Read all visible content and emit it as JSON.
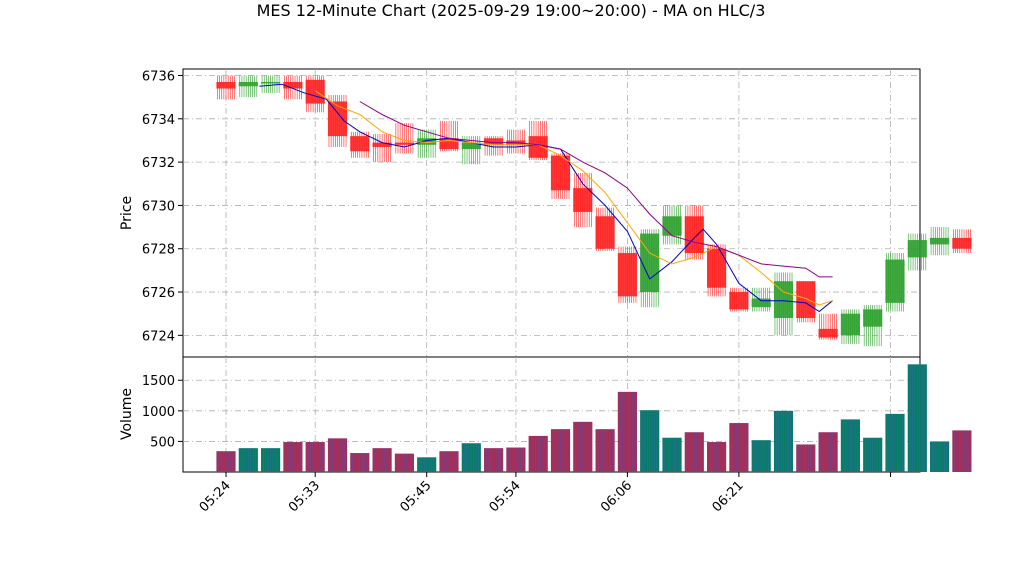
{
  "chart_data": {
    "type": "candlestick",
    "title": "MES 12-Minute Chart (2025-09-29 19:00~20:00) - MA on HLC/3",
    "price_panel": {
      "ylabel": "Price",
      "ylim": [
        6723.0,
        6736.3
      ],
      "yticks": [
        6724,
        6726,
        6728,
        6730,
        6732,
        6734,
        6736
      ],
      "grid": true
    },
    "volume_panel": {
      "ylabel": "Volume",
      "ylim": [
        0,
        1880
      ],
      "yticks": [
        500,
        1000,
        1500
      ],
      "grid": true
    },
    "x": {
      "tick_labels": [
        "05:24",
        "05:33",
        "05:45",
        "05:54",
        "06:06",
        "06:21"
      ],
      "tick_label_rotation": 45
    },
    "colors": {
      "up": "#2ca02c",
      "down": "#ff2020",
      "vol_up": "#0a7a6a",
      "vol_down": "#a0305a",
      "ma_blue": "#0000cc",
      "ma_orange": "#ffa500",
      "ma_purple": "#8b008b"
    },
    "candles": [
      {
        "o": 6735.7,
        "h": 6736.0,
        "l": 6734.9,
        "c": 6735.4,
        "v": 340
      },
      {
        "o": 6735.5,
        "h": 6736.0,
        "l": 6735.0,
        "c": 6735.7,
        "v": 390
      },
      {
        "o": 6735.7,
        "h": 6736.0,
        "l": 6735.2,
        "c": 6735.7,
        "v": 390
      },
      {
        "o": 6735.7,
        "h": 6736.0,
        "l": 6734.9,
        "c": 6735.4,
        "v": 490
      },
      {
        "o": 6735.8,
        "h": 6736.0,
        "l": 6734.3,
        "c": 6734.7,
        "v": 490
      },
      {
        "o": 6734.8,
        "h": 6735.1,
        "l": 6732.7,
        "c": 6733.2,
        "v": 550
      },
      {
        "o": 6733.2,
        "h": 6733.4,
        "l": 6732.2,
        "c": 6732.5,
        "v": 310
      },
      {
        "o": 6732.9,
        "h": 6733.3,
        "l": 6732.0,
        "c": 6732.7,
        "v": 390
      },
      {
        "o": 6732.9,
        "h": 6733.8,
        "l": 6732.4,
        "c": 6732.8,
        "v": 300
      },
      {
        "o": 6732.8,
        "h": 6733.5,
        "l": 6732.2,
        "c": 6733.1,
        "v": 240
      },
      {
        "o": 6733.1,
        "h": 6733.9,
        "l": 6732.5,
        "c": 6732.6,
        "v": 340
      },
      {
        "o": 6732.6,
        "h": 6733.2,
        "l": 6731.9,
        "c": 6732.9,
        "v": 470
      },
      {
        "o": 6733.1,
        "h": 6733.2,
        "l": 6732.3,
        "c": 6732.8,
        "v": 390
      },
      {
        "o": 6733.0,
        "h": 6733.5,
        "l": 6732.4,
        "c": 6732.8,
        "v": 400
      },
      {
        "o": 6733.2,
        "h": 6733.9,
        "l": 6732.1,
        "c": 6732.2,
        "v": 590
      },
      {
        "o": 6732.3,
        "h": 6732.4,
        "l": 6730.3,
        "c": 6730.7,
        "v": 700
      },
      {
        "o": 6730.8,
        "h": 6731.5,
        "l": 6729.0,
        "c": 6729.7,
        "v": 820
      },
      {
        "o": 6729.5,
        "h": 6729.9,
        "l": 6727.9,
        "c": 6728.0,
        "v": 700
      },
      {
        "o": 6727.8,
        "h": 6728.1,
        "l": 6725.5,
        "c": 6725.8,
        "v": 1310
      },
      {
        "o": 6726.0,
        "h": 6728.9,
        "l": 6725.3,
        "c": 6728.7,
        "v": 1010
      },
      {
        "o": 6728.6,
        "h": 6730.0,
        "l": 6728.2,
        "c": 6729.5,
        "v": 560
      },
      {
        "o": 6729.5,
        "h": 6730.0,
        "l": 6727.5,
        "c": 6727.8,
        "v": 650
      },
      {
        "o": 6728.0,
        "h": 6728.2,
        "l": 6725.8,
        "c": 6726.2,
        "v": 490
      },
      {
        "o": 6726.0,
        "h": 6726.2,
        "l": 6725.1,
        "c": 6725.2,
        "v": 800
      },
      {
        "o": 6725.3,
        "h": 6726.2,
        "l": 6725.1,
        "c": 6725.7,
        "v": 520
      },
      {
        "o": 6724.8,
        "h": 6726.9,
        "l": 6724.0,
        "c": 6726.5,
        "v": 1000
      },
      {
        "o": 6726.5,
        "h": 6726.5,
        "l": 6724.6,
        "c": 6724.8,
        "v": 450
      },
      {
        "o": 6724.3,
        "h": 6725.0,
        "l": 6723.8,
        "c": 6723.9,
        "v": 650
      },
      {
        "o": 6724.0,
        "h": 6725.2,
        "l": 6723.6,
        "c": 6725.0,
        "v": 860
      },
      {
        "o": 6724.4,
        "h": 6725.4,
        "l": 6723.5,
        "c": 6725.2,
        "v": 560
      },
      {
        "o": 6725.5,
        "h": 6727.8,
        "l": 6725.1,
        "c": 6727.5,
        "v": 950
      },
      {
        "o": 6727.6,
        "h": 6728.7,
        "l": 6727.0,
        "c": 6728.4,
        "v": 1760
      },
      {
        "o": 6728.2,
        "h": 6729.0,
        "l": 6727.7,
        "c": 6728.5,
        "v": 500
      },
      {
        "o": 6728.5,
        "h": 6728.9,
        "l": 6727.8,
        "c": 6728.0,
        "v": 680
      }
    ],
    "ma_series": [
      {
        "color": "blue",
        "values": [
          {
            "i": 1.5,
            "y": 6735.5
          },
          {
            "i": 2.5,
            "y": 6735.6
          },
          {
            "i": 3.5,
            "y": 6735.2
          },
          {
            "i": 4.5,
            "y": 6734.9
          },
          {
            "i": 5.3,
            "y": 6733.9
          },
          {
            "i": 6.0,
            "y": 6733.4
          },
          {
            "i": 7.0,
            "y": 6732.9
          },
          {
            "i": 8.0,
            "y": 6732.7
          },
          {
            "i": 9.0,
            "y": 6733.0
          },
          {
            "i": 10.0,
            "y": 6733.1
          },
          {
            "i": 11.0,
            "y": 6732.9
          },
          {
            "i": 12.0,
            "y": 6732.7
          },
          {
            "i": 13.0,
            "y": 6732.7
          },
          {
            "i": 14.0,
            "y": 6732.8
          },
          {
            "i": 15.0,
            "y": 6732.6
          },
          {
            "i": 16.0,
            "y": 6731.0
          },
          {
            "i": 17.0,
            "y": 6730.0
          },
          {
            "i": 18.0,
            "y": 6728.8
          },
          {
            "i": 19.0,
            "y": 6726.6
          },
          {
            "i": 20.0,
            "y": 6727.4
          },
          {
            "i": 21.0,
            "y": 6728.5
          },
          {
            "i": 21.4,
            "y": 6728.9
          },
          {
            "i": 22.0,
            "y": 6728.2
          },
          {
            "i": 23.0,
            "y": 6726.4
          },
          {
            "i": 24.0,
            "y": 6725.6
          },
          {
            "i": 25.0,
            "y": 6725.6
          },
          {
            "i": 26.0,
            "y": 6725.5
          },
          {
            "i": 26.6,
            "y": 6725.1
          },
          {
            "i": 27.2,
            "y": 6725.6
          }
        ]
      },
      {
        "color": "orange",
        "values": [
          {
            "i": 4.0,
            "y": 6735.3
          },
          {
            "i": 5.0,
            "y": 6734.6
          },
          {
            "i": 6.0,
            "y": 6734.2
          },
          {
            "i": 7.0,
            "y": 6733.4
          },
          {
            "i": 8.0,
            "y": 6733.0
          },
          {
            "i": 9.0,
            "y": 6732.9
          },
          {
            "i": 10.0,
            "y": 6733.0
          },
          {
            "i": 11.0,
            "y": 6732.9
          },
          {
            "i": 12.0,
            "y": 6732.8
          },
          {
            "i": 13.0,
            "y": 6732.8
          },
          {
            "i": 14.0,
            "y": 6732.8
          },
          {
            "i": 15.0,
            "y": 6732.3
          },
          {
            "i": 16.0,
            "y": 6731.6
          },
          {
            "i": 17.0,
            "y": 6730.6
          },
          {
            "i": 18.0,
            "y": 6729.2
          },
          {
            "i": 19.0,
            "y": 6727.8
          },
          {
            "i": 20.0,
            "y": 6727.3
          },
          {
            "i": 21.0,
            "y": 6727.6
          },
          {
            "i": 22.0,
            "y": 6728.1
          },
          {
            "i": 23.0,
            "y": 6727.7
          },
          {
            "i": 24.0,
            "y": 6726.9
          },
          {
            "i": 25.0,
            "y": 6726.0
          },
          {
            "i": 26.0,
            "y": 6725.7
          },
          {
            "i": 26.6,
            "y": 6725.4
          },
          {
            "i": 27.2,
            "y": 6725.6
          }
        ]
      },
      {
        "color": "purple",
        "values": [
          {
            "i": 6.0,
            "y": 6734.8
          },
          {
            "i": 7.0,
            "y": 6734.2
          },
          {
            "i": 8.0,
            "y": 6733.7
          },
          {
            "i": 9.0,
            "y": 6733.4
          },
          {
            "i": 10.0,
            "y": 6733.1
          },
          {
            "i": 11.0,
            "y": 6733.0
          },
          {
            "i": 12.0,
            "y": 6732.9
          },
          {
            "i": 13.0,
            "y": 6732.9
          },
          {
            "i": 14.0,
            "y": 6732.8
          },
          {
            "i": 15.0,
            "y": 6732.6
          },
          {
            "i": 16.0,
            "y": 6732.0
          },
          {
            "i": 17.0,
            "y": 6731.5
          },
          {
            "i": 18.0,
            "y": 6730.8
          },
          {
            "i": 19.0,
            "y": 6729.6
          },
          {
            "i": 20.0,
            "y": 6728.6
          },
          {
            "i": 21.0,
            "y": 6728.3
          },
          {
            "i": 22.0,
            "y": 6728.1
          },
          {
            "i": 23.0,
            "y": 6727.7
          },
          {
            "i": 24.0,
            "y": 6727.3
          },
          {
            "i": 25.0,
            "y": 6727.2
          },
          {
            "i": 26.0,
            "y": 6727.1
          },
          {
            "i": 26.6,
            "y": 6726.7
          },
          {
            "i": 27.2,
            "y": 6726.7
          }
        ]
      }
    ]
  }
}
